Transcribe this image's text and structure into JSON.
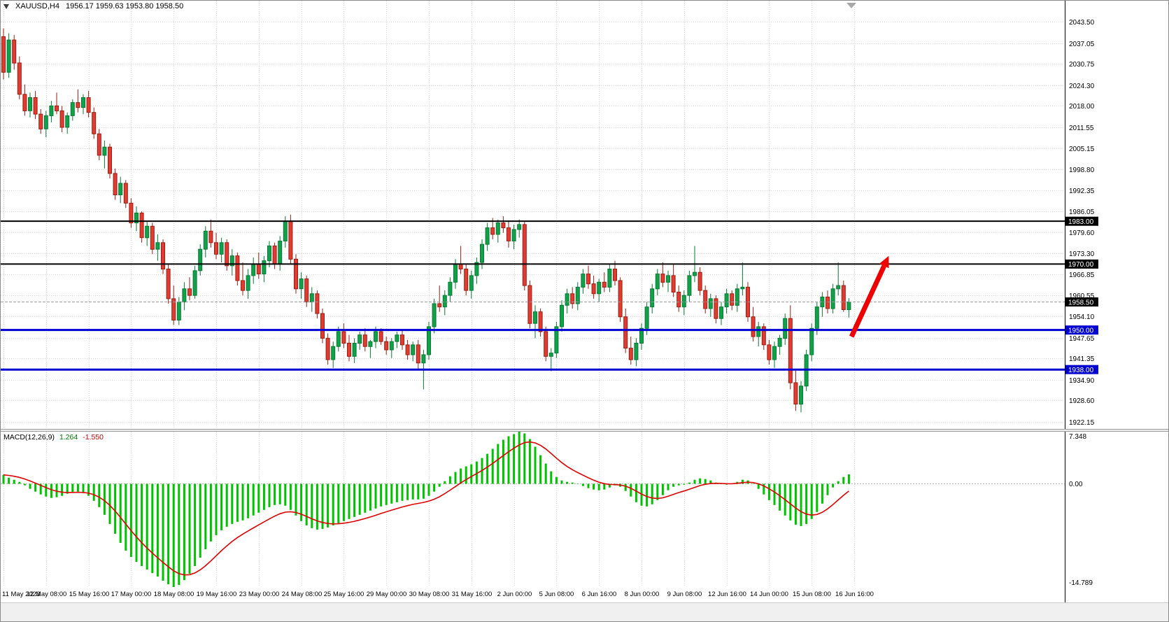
{
  "window": {
    "title_symbol": "XAUUSD,H4",
    "title_ohlc": "1956.17 1959.63 1953.80 1958.50"
  },
  "macd_panel": {
    "name": "MACD(12,26,9)",
    "value_main": "1.264",
    "value_signal": "-1.550"
  },
  "chart_data": {
    "type": "candlestick",
    "symbol": "XAUUSD",
    "timeframe": "H4",
    "last_ohlc": {
      "open": 1956.17,
      "high": 1959.63,
      "low": 1953.8,
      "close": 1958.5
    },
    "price_top": 2049.9,
    "price_bottom": 1920.0,
    "price_ticks": [
      "2043.50",
      "2037.05",
      "2030.75",
      "2024.30",
      "2018.00",
      "2011.55",
      "2005.15",
      "1998.80",
      "1992.35",
      "1986.05",
      "1979.60",
      "1973.30",
      "1966.85",
      "1960.55",
      "1954.10",
      "1947.65",
      "1941.35",
      "1934.90",
      "1928.60",
      "1922.15"
    ],
    "time_labels": [
      "11 May 2023",
      "12 May 08:00",
      "15 May 16:00",
      "17 May 00:00",
      "18 May 08:00",
      "19 May 16:00",
      "23 May 00:00",
      "24 May 08:00",
      "25 May 16:00",
      "29 May 00:00",
      "30 May 08:00",
      "31 May 16:00",
      "2 Jun 00:00",
      "5 Jun 08:00",
      "6 Jun 16:00",
      "8 Jun 00:00",
      "9 Jun 08:00",
      "12 Jun 16:00",
      "14 Jun 00:00",
      "15 Jun 08:00",
      "16 Jun 16:00"
    ],
    "label_step": 8,
    "candles_ohlc": [
      [
        2039.0,
        2041.5,
        2026.0,
        2028.2
      ],
      [
        2028.2,
        2040.0,
        2026.5,
        2038.0
      ],
      [
        2038.0,
        2039.5,
        2029.0,
        2031.0
      ],
      [
        2031.0,
        2033.0,
        2020.0,
        2021.5
      ],
      [
        2021.5,
        2024.5,
        2015.0,
        2016.5
      ],
      [
        2016.5,
        2022.0,
        2014.5,
        2020.5
      ],
      [
        2020.5,
        2022.5,
        2014.0,
        2015.5
      ],
      [
        2015.5,
        2017.0,
        2009.5,
        2011.0
      ],
      [
        2011.0,
        2016.5,
        2008.5,
        2015.0
      ],
      [
        2015.0,
        2019.5,
        2013.0,
        2018.0
      ],
      [
        2018.0,
        2022.0,
        2015.5,
        2016.5
      ],
      [
        2016.5,
        2018.0,
        2010.0,
        2011.5
      ],
      [
        2011.5,
        2016.0,
        2009.5,
        2015.0
      ],
      [
        2015.0,
        2020.0,
        2013.5,
        2019.0
      ],
      [
        2019.0,
        2023.0,
        2016.0,
        2017.5
      ],
      [
        2017.5,
        2021.5,
        2015.5,
        2020.5
      ],
      [
        2020.5,
        2022.5,
        2014.5,
        2016.0
      ],
      [
        2016.0,
        2017.5,
        2008.0,
        2009.5
      ],
      [
        2009.5,
        2011.0,
        2001.5,
        2003.0
      ],
      [
        2003.0,
        2007.5,
        1999.0,
        2005.5
      ],
      [
        2005.5,
        2006.5,
        1996.0,
        1997.5
      ],
      [
        1997.5,
        1999.0,
        1989.5,
        1991.0
      ],
      [
        1991.0,
        1996.5,
        1988.5,
        1994.5
      ],
      [
        1994.5,
        1995.5,
        1987.0,
        1988.5
      ],
      [
        1988.5,
        1990.0,
        1981.0,
        1982.5
      ],
      [
        1982.5,
        1987.5,
        1980.0,
        1985.5
      ],
      [
        1985.5,
        1986.0,
        1976.5,
        1978.0
      ],
      [
        1978.0,
        1983.0,
        1975.5,
        1981.5
      ],
      [
        1981.5,
        1982.5,
        1973.0,
        1974.5
      ],
      [
        1974.5,
        1979.0,
        1971.0,
        1976.5
      ],
      [
        1976.5,
        1977.5,
        1967.0,
        1968.5
      ],
      [
        1968.5,
        1970.0,
        1958.0,
        1959.5
      ],
      [
        1959.5,
        1963.5,
        1951.5,
        1953.0
      ],
      [
        1953.0,
        1960.0,
        1951.5,
        1958.5
      ],
      [
        1958.5,
        1964.5,
        1956.0,
        1962.5
      ],
      [
        1962.5,
        1966.0,
        1959.0,
        1960.5
      ],
      [
        1960.5,
        1969.5,
        1959.5,
        1968.0
      ],
      [
        1968.0,
        1976.0,
        1966.5,
        1974.5
      ],
      [
        1974.5,
        1981.5,
        1972.0,
        1980.0
      ],
      [
        1980.0,
        1983.5,
        1975.0,
        1976.5
      ],
      [
        1976.5,
        1979.5,
        1971.5,
        1973.0
      ],
      [
        1973.0,
        1978.0,
        1970.5,
        1976.5
      ],
      [
        1976.5,
        1977.5,
        1968.0,
        1969.5
      ],
      [
        1969.5,
        1974.5,
        1966.5,
        1972.5
      ],
      [
        1972.5,
        1973.5,
        1963.5,
        1965.0
      ],
      [
        1965.0,
        1970.5,
        1960.5,
        1962.0
      ],
      [
        1962.0,
        1968.5,
        1959.5,
        1966.5
      ],
      [
        1966.5,
        1972.0,
        1964.0,
        1970.0
      ],
      [
        1970.0,
        1973.5,
        1965.5,
        1967.0
      ],
      [
        1967.0,
        1972.5,
        1964.5,
        1971.0
      ],
      [
        1971.0,
        1977.0,
        1969.0,
        1975.5
      ],
      [
        1975.5,
        1976.5,
        1968.5,
        1970.0
      ],
      [
        1970.0,
        1978.5,
        1968.0,
        1977.0
      ],
      [
        1977.0,
        1984.5,
        1975.0,
        1983.0
      ],
      [
        1983.0,
        1985.0,
        1970.0,
        1971.5
      ],
      [
        1971.5,
        1973.0,
        1961.0,
        1962.5
      ],
      [
        1962.5,
        1967.5,
        1959.5,
        1965.5
      ],
      [
        1965.5,
        1966.5,
        1957.0,
        1958.5
      ],
      [
        1958.5,
        1963.0,
        1955.5,
        1961.0
      ],
      [
        1961.0,
        1962.0,
        1953.5,
        1955.0
      ],
      [
        1955.0,
        1956.5,
        1946.0,
        1947.5
      ],
      [
        1947.5,
        1949.0,
        1939.5,
        1941.0
      ],
      [
        1941.0,
        1946.5,
        1938.5,
        1945.0
      ],
      [
        1945.0,
        1951.0,
        1943.5,
        1949.5
      ],
      [
        1949.5,
        1952.0,
        1944.5,
        1946.0
      ],
      [
        1946.0,
        1948.5,
        1940.5,
        1942.0
      ],
      [
        1942.0,
        1947.5,
        1940.0,
        1946.0
      ],
      [
        1946.0,
        1949.5,
        1944.0,
        1948.5
      ],
      [
        1948.5,
        1950.5,
        1943.5,
        1945.0
      ],
      [
        1945.0,
        1947.0,
        1941.5,
        1946.5
      ],
      [
        1946.5,
        1951.0,
        1944.5,
        1949.5
      ],
      [
        1949.5,
        1950.5,
        1945.5,
        1946.5
      ],
      [
        1946.5,
        1948.0,
        1942.5,
        1944.0
      ],
      [
        1944.0,
        1947.5,
        1941.5,
        1946.5
      ],
      [
        1946.5,
        1949.5,
        1944.5,
        1948.5
      ],
      [
        1948.5,
        1950.0,
        1944.0,
        1945.5
      ],
      [
        1945.5,
        1947.0,
        1941.0,
        1942.5
      ],
      [
        1942.5,
        1946.5,
        1940.5,
        1945.5
      ],
      [
        1945.5,
        1947.0,
        1938.0,
        1940.0
      ],
      [
        1940.0,
        1944.0,
        1932.0,
        1942.5
      ],
      [
        1942.5,
        1952.5,
        1941.0,
        1951.0
      ],
      [
        1951.0,
        1959.5,
        1949.0,
        1958.0
      ],
      [
        1958.0,
        1963.5,
        1955.5,
        1957.0
      ],
      [
        1957.0,
        1962.0,
        1954.5,
        1960.5
      ],
      [
        1960.5,
        1966.0,
        1958.5,
        1964.5
      ],
      [
        1964.5,
        1971.5,
        1962.5,
        1970.0
      ],
      [
        1970.0,
        1975.5,
        1967.0,
        1968.5
      ],
      [
        1968.5,
        1970.0,
        1960.5,
        1962.0
      ],
      [
        1962.0,
        1968.0,
        1959.5,
        1966.5
      ],
      [
        1966.5,
        1972.0,
        1964.0,
        1970.5
      ],
      [
        1970.5,
        1977.5,
        1968.5,
        1976.0
      ],
      [
        1976.0,
        1982.5,
        1974.0,
        1981.0
      ],
      [
        1981.0,
        1984.0,
        1977.5,
        1979.0
      ],
      [
        1979.0,
        1983.5,
        1976.5,
        1982.5
      ],
      [
        1982.5,
        1984.5,
        1979.5,
        1981.0
      ],
      [
        1981.0,
        1983.0,
        1975.0,
        1977.0
      ],
      [
        1977.0,
        1982.0,
        1974.5,
        1980.5
      ],
      [
        1980.5,
        1983.5,
        1978.0,
        1982.0
      ],
      [
        1982.0,
        1983.0,
        1962.0,
        1963.5
      ],
      [
        1963.5,
        1965.0,
        1950.5,
        1952.0
      ],
      [
        1952.0,
        1957.5,
        1947.5,
        1955.5
      ],
      [
        1955.5,
        1956.5,
        1948.0,
        1949.5
      ],
      [
        1949.5,
        1951.0,
        1940.5,
        1942.0
      ],
      [
        1942.0,
        1944.5,
        1937.5,
        1943.0
      ],
      [
        1943.0,
        1952.5,
        1941.5,
        1951.0
      ],
      [
        1951.0,
        1959.0,
        1949.5,
        1957.5
      ],
      [
        1957.5,
        1962.5,
        1955.0,
        1961.0
      ],
      [
        1961.0,
        1963.0,
        1956.5,
        1958.0
      ],
      [
        1958.0,
        1964.5,
        1956.0,
        1963.0
      ],
      [
        1963.0,
        1968.5,
        1961.0,
        1967.0
      ],
      [
        1967.0,
        1969.5,
        1962.5,
        1964.0
      ],
      [
        1964.0,
        1966.5,
        1959.5,
        1961.0
      ],
      [
        1961.0,
        1965.5,
        1958.5,
        1964.5
      ],
      [
        1964.5,
        1967.5,
        1961.5,
        1963.0
      ],
      [
        1963.0,
        1970.0,
        1961.5,
        1968.5
      ],
      [
        1968.5,
        1971.0,
        1963.5,
        1965.0
      ],
      [
        1965.0,
        1966.0,
        1952.5,
        1954.0
      ],
      [
        1954.0,
        1956.5,
        1943.0,
        1944.5
      ],
      [
        1944.5,
        1948.0,
        1939.5,
        1941.0
      ],
      [
        1941.0,
        1947.5,
        1939.0,
        1946.0
      ],
      [
        1946.0,
        1952.0,
        1944.0,
        1950.5
      ],
      [
        1950.5,
        1958.5,
        1948.5,
        1957.0
      ],
      [
        1957.0,
        1964.0,
        1955.0,
        1962.5
      ],
      [
        1962.5,
        1968.5,
        1960.5,
        1967.0
      ],
      [
        1967.0,
        1970.5,
        1963.0,
        1964.5
      ],
      [
        1964.5,
        1968.0,
        1961.5,
        1966.5
      ],
      [
        1966.5,
        1970.0,
        1960.0,
        1961.5
      ],
      [
        1961.5,
        1963.5,
        1955.5,
        1957.0
      ],
      [
        1957.0,
        1962.0,
        1954.5,
        1960.5
      ],
      [
        1960.5,
        1968.0,
        1958.5,
        1966.5
      ],
      [
        1966.5,
        1975.5,
        1964.5,
        1967.5
      ],
      [
        1967.5,
        1969.0,
        1960.5,
        1962.0
      ],
      [
        1962.0,
        1963.5,
        1955.0,
        1956.5
      ],
      [
        1956.5,
        1961.0,
        1954.0,
        1959.5
      ],
      [
        1959.5,
        1960.5,
        1952.0,
        1953.5
      ],
      [
        1953.5,
        1958.5,
        1951.5,
        1957.0
      ],
      [
        1957.0,
        1962.5,
        1955.0,
        1961.0
      ],
      [
        1961.0,
        1962.0,
        1956.0,
        1957.5
      ],
      [
        1957.5,
        1964.0,
        1955.5,
        1962.5
      ],
      [
        1962.5,
        1970.5,
        1960.5,
        1963.0
      ],
      [
        1963.0,
        1964.5,
        1952.5,
        1954.0
      ],
      [
        1954.0,
        1957.0,
        1946.5,
        1948.0
      ],
      [
        1948.0,
        1952.5,
        1945.0,
        1951.0
      ],
      [
        1951.0,
        1952.0,
        1944.0,
        1945.5
      ],
      [
        1945.5,
        1947.0,
        1939.5,
        1941.0
      ],
      [
        1941.0,
        1946.5,
        1938.5,
        1945.0
      ],
      [
        1945.0,
        1948.5,
        1942.5,
        1947.5
      ],
      [
        1947.5,
        1955.0,
        1945.5,
        1953.5
      ],
      [
        1953.5,
        1957.5,
        1932.0,
        1934.0
      ],
      [
        1934.0,
        1938.0,
        1925.5,
        1927.5
      ],
      [
        1927.5,
        1934.5,
        1925.0,
        1933.0
      ],
      [
        1933.0,
        1944.0,
        1931.5,
        1942.5
      ],
      [
        1942.5,
        1952.0,
        1940.5,
        1950.5
      ],
      [
        1950.5,
        1958.5,
        1948.5,
        1957.0
      ],
      [
        1957.0,
        1961.5,
        1954.0,
        1960.0
      ],
      [
        1960.0,
        1962.0,
        1955.0,
        1956.5
      ],
      [
        1956.5,
        1964.0,
        1955.0,
        1962.5
      ],
      [
        1962.5,
        1970.5,
        1960.5,
        1963.5
      ],
      [
        1963.5,
        1965.0,
        1955.5,
        1956.2
      ],
      [
        1956.17,
        1959.63,
        1953.8,
        1958.5
      ]
    ],
    "hlines": [
      {
        "value": 1983.0,
        "label": "1983.00",
        "color": "#000000",
        "width": 2
      },
      {
        "value": 1970.0,
        "label": "1970.00",
        "color": "#000000",
        "width": 2
      },
      {
        "value": 1950.0,
        "label": "1950.00",
        "color": "#0000d0",
        "width": 3
      },
      {
        "value": 1938.0,
        "label": "1938.00",
        "color": "#0000d0",
        "width": 3
      }
    ],
    "last_price": {
      "value": 1958.5,
      "label": "1958.50",
      "badge_color": "#000000"
    },
    "macd": {
      "max": 7.348,
      "min": -14.789,
      "axis_labels": {
        "top": "7.348",
        "zero": "0.00",
        "bottom": "-14.789"
      },
      "signal_period": 9,
      "histogram": [
        1.2,
        0.8,
        0.5,
        0.2,
        -0.3,
        -0.8,
        -1.2,
        -1.6,
        -1.9,
        -2.1,
        -2.0,
        -1.8,
        -1.5,
        -1.3,
        -1.2,
        -1.4,
        -1.8,
        -2.5,
        -3.4,
        -4.5,
        -5.8,
        -7.2,
        -8.5,
        -9.6,
        -10.5,
        -11.2,
        -11.8,
        -12.3,
        -12.8,
        -13.3,
        -13.9,
        -14.4,
        -14.789,
        -14.5,
        -13.8,
        -12.9,
        -11.8,
        -10.6,
        -9.4,
        -8.3,
        -7.4,
        -6.7,
        -6.2,
        -5.8,
        -5.5,
        -5.3,
        -5.0,
        -4.6,
        -4.2,
        -3.8,
        -3.4,
        -3.1,
        -3.0,
        -3.2,
        -3.8,
        -4.6,
        -5.4,
        -6.0,
        -6.4,
        -6.6,
        -6.5,
        -6.3,
        -6.0,
        -5.7,
        -5.4,
        -5.1,
        -4.8,
        -4.5,
        -4.2,
        -3.9,
        -3.6,
        -3.3,
        -3.1,
        -2.9,
        -2.7,
        -2.5,
        -2.4,
        -2.3,
        -2.3,
        -2.2,
        -1.8,
        -1.2,
        -0.5,
        0.3,
        1.0,
        1.6,
        2.1,
        2.4,
        2.7,
        3.1,
        3.6,
        4.2,
        4.9,
        5.6,
        6.2,
        6.7,
        7.0,
        7.348,
        7.1,
        6.3,
        5.2,
        4.0,
        2.8,
        1.7,
        0.9,
        0.4,
        0.2,
        0.1,
        -0.1,
        -0.4,
        -0.7,
        -0.9,
        -1.0,
        -0.9,
        -0.6,
        -0.3,
        -0.5,
        -1.1,
        -1.9,
        -2.7,
        -3.2,
        -3.3,
        -3.0,
        -2.4,
        -1.7,
        -1.0,
        -0.5,
        -0.3,
        -0.2,
        0.1,
        0.5,
        0.7,
        0.6,
        0.4,
        0.1,
        -0.1,
        -0.2,
        -0.1,
        0.2,
        0.5,
        0.4,
        -0.1,
        -0.8,
        -1.6,
        -2.4,
        -3.1,
        -3.9,
        -4.6,
        -5.3,
        -5.9,
        -6.1,
        -5.8,
        -5.1,
        -4.1,
        -2.9,
        -1.7,
        -0.6,
        0.3,
        0.9,
        1.264
      ]
    },
    "arrow": {
      "from_index": 159.5,
      "from_price": 1948.0,
      "to_index": 166.5,
      "to_price": 1972.5,
      "color": "#ee0000"
    },
    "colors": {
      "up_fill": "#12a14b",
      "up_stroke": "#077a33",
      "down_fill": "#e03c31",
      "down_stroke": "#9d1d12",
      "grid": "#d4d4d4",
      "macd_bar": "#00c300",
      "macd_signal": "#e00000",
      "axis_text": "#000000",
      "background": "#ffffff"
    }
  }
}
